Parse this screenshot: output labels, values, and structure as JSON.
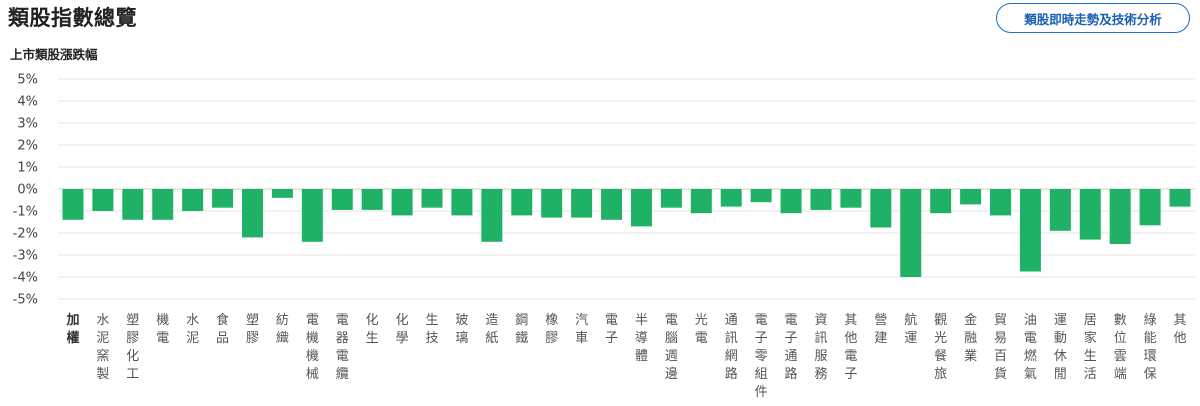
{
  "header": {
    "title": "類股指數總覽",
    "analysis_button": "類股即時走勢及技術分析"
  },
  "colors": {
    "bar": "#1fb266",
    "grid": "#e6e6e6",
    "zero_line": "#cccccc",
    "button_border": "#1a6fd1"
  },
  "chart_data": {
    "type": "bar",
    "title": "上市類股漲跌幅",
    "xlabel": "",
    "ylabel": "",
    "ylim": [
      -5,
      5
    ],
    "yticks": [
      "5%",
      "4%",
      "3%",
      "2%",
      "1%",
      "0%",
      "-1%",
      "-2%",
      "-3%",
      "-4%",
      "-5%"
    ],
    "grid": true,
    "categories": [
      "加權",
      "水泥窯製",
      "塑膠化工",
      "機電",
      "水泥",
      "食品",
      "塑膠",
      "紡織",
      "電機機械",
      "電器電纜",
      "化生",
      "化學",
      "生技",
      "玻璃",
      "造紙",
      "鋼鐵",
      "橡膠",
      "汽車",
      "電子",
      "半導體",
      "電腦週邊",
      "光電",
      "通訊網路",
      "電子零組件",
      "電子通路",
      "資訊服務",
      "其他電子",
      "營建",
      "航運",
      "觀光餐旅",
      "金融業",
      "貿易百貨",
      "油電燃氣",
      "運動休閒",
      "居家生活",
      "數位雲端",
      "綠能環保",
      "其他"
    ],
    "values": [
      -1.4,
      -1.0,
      -1.4,
      -1.4,
      -1.0,
      -0.85,
      -2.2,
      -0.4,
      -2.4,
      -0.95,
      -0.95,
      -1.2,
      -0.85,
      -1.2,
      -2.4,
      -1.2,
      -1.3,
      -1.3,
      -1.4,
      -1.7,
      -0.85,
      -1.1,
      -0.8,
      -0.6,
      -1.1,
      -0.95,
      -0.85,
      -1.75,
      -4.0,
      -1.1,
      -0.7,
      -1.2,
      -3.75,
      -1.9,
      -2.3,
      -2.5,
      -1.65,
      -0.8
    ]
  }
}
